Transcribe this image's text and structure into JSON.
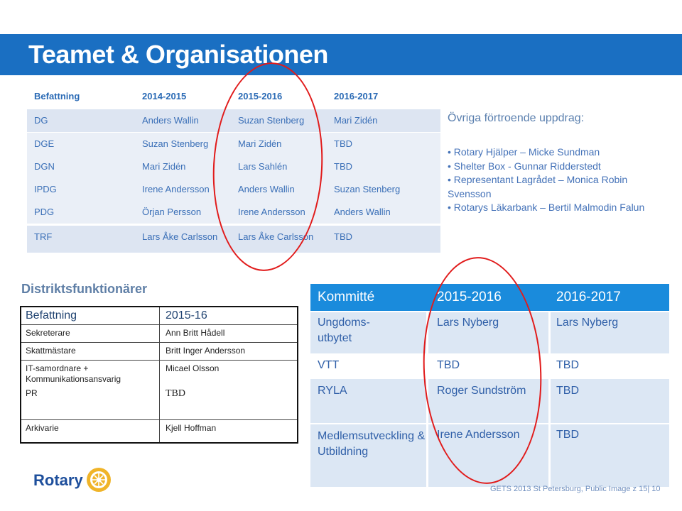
{
  "title": "Teamet & Organisationen",
  "top_table": {
    "headers": [
      "Befattning",
      "2014-2015",
      "2015-2016",
      "2016-2017"
    ],
    "rows": [
      [
        "DG",
        "Anders Wallin",
        "Suzan Stenberg",
        "Mari Zidén"
      ],
      [
        "DGE",
        "Suzan Stenberg",
        "Mari Zidén",
        "TBD"
      ],
      [
        "DGN",
        "Mari Zidén",
        "Lars Sahlén",
        "TBD"
      ],
      [
        "IPDG",
        "Irene Andersson",
        "Anders Wallin",
        "Suzan Stenberg"
      ],
      [
        "PDG",
        "Örjan Persson",
        "Irene Andersson",
        "Anders Wallin"
      ],
      [
        "TRF",
        "Lars Åke Carlsson",
        "Lars Åke Carlsson",
        "TBD"
      ]
    ]
  },
  "ovriga": {
    "heading": "Övriga förtroende uppdrag:",
    "items": [
      "• Rotary Hjälper – Micke Sundman",
      "• Shelter Box - Gunnar Ridderstedt",
      "• Representant Lagrådet – Monica Robin Svensson",
      "• Rotarys Läkarbank – Bertil Malmodin Falun"
    ]
  },
  "distrikt": {
    "title": "Distriktsfunktionärer",
    "headers": [
      "Befattning",
      "2015-16"
    ],
    "rows": [
      [
        "Sekreterare",
        "Ann Britt Hådell"
      ],
      [
        "Skattmästare",
        "Britt Inger Andersson"
      ],
      [
        "IT-samordnare + Kommunikationsansvarig",
        "Micael Olsson"
      ],
      [
        "PR",
        "TBD"
      ],
      [
        "Arkivarie",
        "Kjell Hoffman"
      ]
    ]
  },
  "kommitte": {
    "headers": [
      "Kommitté",
      "2015-2016",
      "2016-2017"
    ],
    "rows": [
      [
        "Ungdoms-utbytet",
        "Lars Nyberg",
        "Lars Nyberg"
      ],
      [
        "VTT",
        "TBD",
        "TBD"
      ],
      [
        "RYLA",
        "Roger Sundström",
        "TBD"
      ],
      [
        "Medlemsutveckling & Utbildning",
        "Irene Andersson",
        "TBD"
      ]
    ]
  },
  "footer": "GETS   2013 St Petersburg, Public Image z 15|  10",
  "logo_text": "Rotary",
  "colors": {
    "title_bar": "#1a6fc2",
    "accent": "#1a8bdc",
    "highlight_ellipse": "#e11b1b"
  }
}
